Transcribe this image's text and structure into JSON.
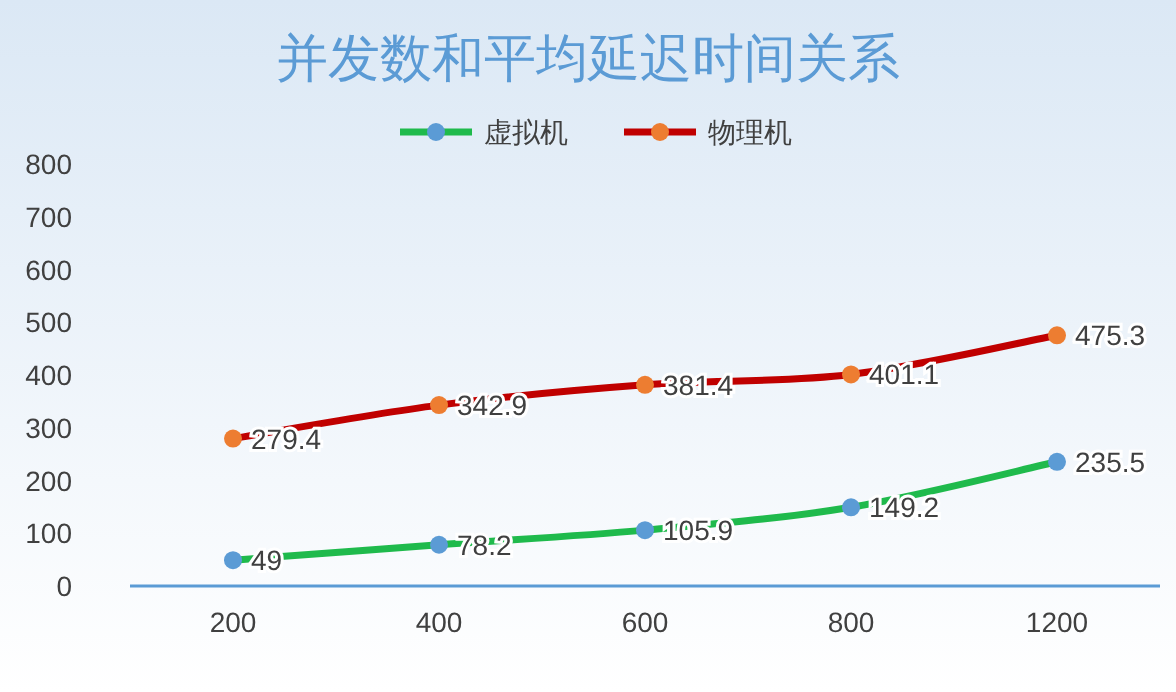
{
  "chart_data": {
    "type": "line",
    "title": "并发数和平均延迟时间关系",
    "categories": [
      "200",
      "400",
      "600",
      "800",
      "1200"
    ],
    "series": [
      {
        "name": "虚拟机",
        "color": "#1fba4c",
        "colors": [
          "#5b9bd5",
          "#5b9bd5",
          "#5b9bd5",
          "#5b9bd5",
          "#5b9bd5"
        ],
        "values": [
          49,
          78.2,
          105.9,
          149.2,
          235.5
        ]
      },
      {
        "name": "物理机",
        "color": "#c00000",
        "colors": [
          "#ed7d31",
          "#ed7d31",
          "#ed7d31",
          "#ed7d31",
          "#ed7d31"
        ],
        "values": [
          279.4,
          342.9,
          381.4,
          401.1,
          475.3
        ]
      }
    ],
    "ylim": [
      0,
      800
    ],
    "yticks": [
      0,
      100,
      200,
      300,
      400,
      500,
      600,
      700,
      800
    ],
    "grid": false,
    "legend": "top",
    "marker": "circle",
    "data_labels": true
  }
}
